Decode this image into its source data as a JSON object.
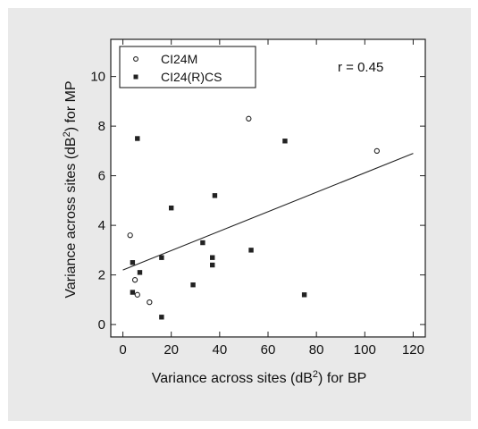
{
  "chart_data": {
    "type": "scatter",
    "xlabel": {
      "pre": "Variance across sites (dB",
      "sup": "2",
      "post": ") for BP"
    },
    "ylabel": {
      "pre": "Variance across sites (dB",
      "sup": "2",
      "post": ") for MP"
    },
    "xlim": [
      -5,
      125
    ],
    "ylim": [
      -0.5,
      11.5
    ],
    "x_ticks": [
      0,
      20,
      40,
      60,
      80,
      100,
      120
    ],
    "y_ticks": [
      0,
      2,
      4,
      6,
      8,
      10
    ],
    "grid": false,
    "legend_position": "top-left",
    "annotation": "r = 0.45",
    "series": [
      {
        "name": "CI24M",
        "marker": "open-circle",
        "points": [
          [
            3,
            3.6
          ],
          [
            5,
            1.8
          ],
          [
            6,
            1.2
          ],
          [
            11,
            0.9
          ],
          [
            52,
            8.3
          ],
          [
            105,
            7.0
          ]
        ]
      },
      {
        "name": "CI24(R)CS",
        "marker": "filled-square",
        "points": [
          [
            4,
            2.5
          ],
          [
            4,
            1.3
          ],
          [
            6,
            7.5
          ],
          [
            7,
            2.1
          ],
          [
            16,
            2.7
          ],
          [
            16,
            0.3
          ],
          [
            20,
            4.7
          ],
          [
            29,
            1.6
          ],
          [
            33,
            3.3
          ],
          [
            37,
            2.7
          ],
          [
            37,
            2.4
          ],
          [
            38,
            5.2
          ],
          [
            53,
            3.0
          ],
          [
            67,
            7.4
          ],
          [
            75,
            1.2
          ]
        ]
      }
    ],
    "regression_line": {
      "x": [
        0,
        120
      ],
      "y": [
        2.2,
        6.9
      ]
    }
  }
}
